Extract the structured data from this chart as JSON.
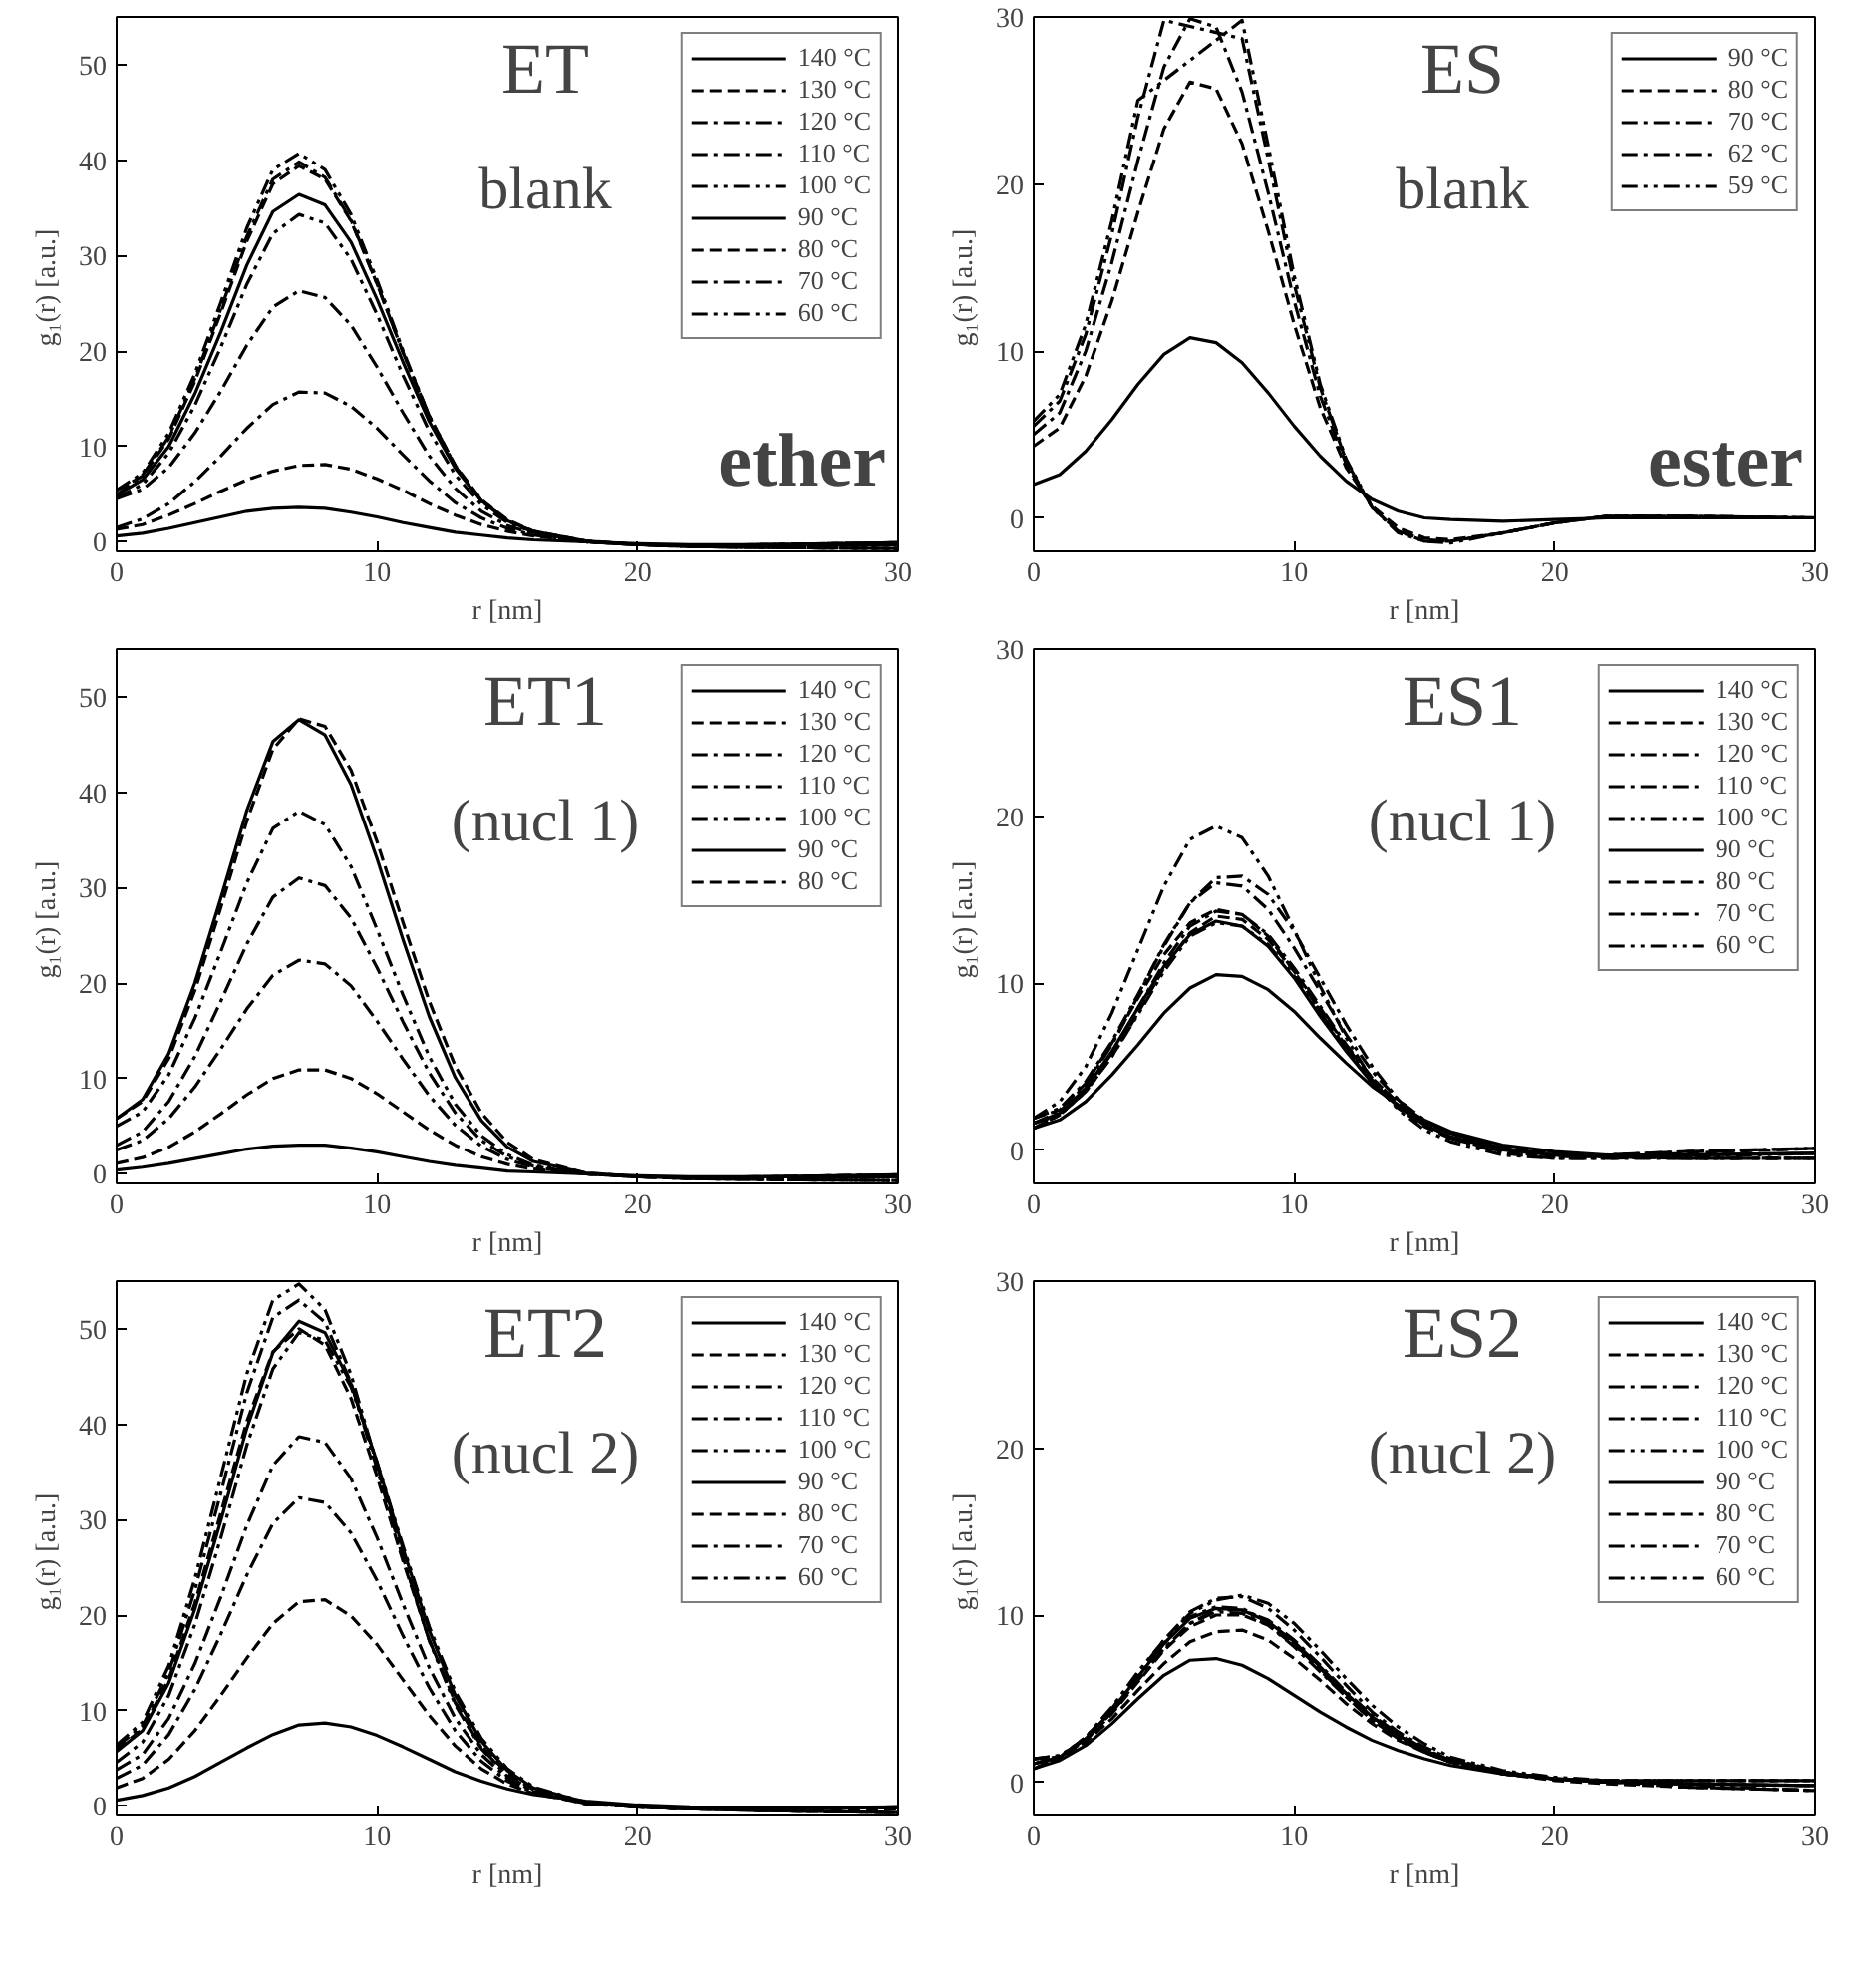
{
  "chart_data": [
    {
      "type": "line",
      "xlabel": "r [nm]",
      "ylabel": "g₁(r)  [a.u.]",
      "annotations": [
        "ET",
        "blank",
        "ether"
      ],
      "xlim": [
        0,
        30
      ],
      "ylim": [
        -1,
        55
      ],
      "xticks": [
        0,
        10,
        20,
        30
      ],
      "yticks": [
        0,
        10,
        20,
        30,
        40,
        50
      ],
      "legend": "top right",
      "grid": false,
      "x": [
        0,
        1,
        2,
        3,
        4,
        5,
        6,
        7,
        8,
        9,
        10,
        11,
        12,
        13,
        14,
        15,
        16,
        18,
        20,
        22,
        25,
        30
      ],
      "series": [
        {
          "name": "140 °C",
          "color": "#000000",
          "line_style": "solid",
          "values": [
            0.6,
            0.9,
            1.4,
            2.0,
            2.6,
            3.2,
            3.5,
            3.6,
            3.5,
            3.1,
            2.6,
            2.0,
            1.5,
            1.0,
            0.7,
            0.4,
            0.2,
            0,
            -0.2,
            -0.3,
            -0.3,
            -0.3
          ]
        },
        {
          "name": "130 °C",
          "color": "#000000",
          "line_style": "dashed",
          "values": [
            1.3,
            1.8,
            2.8,
            4.0,
            5.3,
            6.5,
            7.4,
            8.0,
            8.1,
            7.6,
            6.6,
            5.4,
            4.0,
            2.8,
            1.8,
            1.1,
            0.6,
            0,
            -0.3,
            -0.4,
            -0.3,
            -0.1
          ]
        },
        {
          "name": "120 °C",
          "color": "#000000",
          "line_style": "dashdot",
          "values": [
            1.5,
            2.4,
            4.0,
            6.3,
            9.0,
            11.9,
            14.4,
            15.7,
            15.6,
            14.2,
            11.9,
            9.1,
            6.4,
            4.1,
            2.5,
            1.4,
            0.7,
            0,
            -0.3,
            -0.5,
            -0.6,
            -0.7
          ]
        },
        {
          "name": "110 °C",
          "color": "#000000",
          "line_style": "dashdot",
          "values": [
            4.5,
            5.5,
            7.8,
            11.4,
            15.8,
            20.6,
            24.6,
            26.3,
            25.6,
            22.7,
            18.3,
            13.5,
            9.0,
            5.6,
            3.2,
            1.7,
            0.8,
            0,
            -0.3,
            -0.4,
            -0.3,
            -0.1
          ]
        },
        {
          "name": "100 °C",
          "color": "#000000",
          "line_style": "dashdotdot",
          "values": [
            4.6,
            6.0,
            9.3,
            14.3,
            20.4,
            27.0,
            32.3,
            34.3,
            33.4,
            29.6,
            23.8,
            17.4,
            11.6,
            7.0,
            3.9,
            2.0,
            1.0,
            0,
            -0.3,
            -0.5,
            -0.6,
            -0.7
          ]
        },
        {
          "name": "90 °C",
          "color": "#000000",
          "line_style": "solid",
          "values": [
            4.9,
            6.5,
            10.0,
            15.5,
            22.0,
            29.0,
            34.6,
            36.4,
            35.3,
            31.4,
            25.4,
            18.8,
            12.6,
            7.7,
            4.3,
            2.2,
            1.1,
            0.1,
            -0.3,
            -0.4,
            -0.3,
            -0.1
          ]
        },
        {
          "name": "80 °C",
          "color": "#000000",
          "line_style": "dashed",
          "values": [
            5.4,
            6.9,
            10.8,
            16.8,
            24.0,
            31.5,
            37.5,
            39.4,
            38.0,
            33.6,
            27.0,
            19.8,
            13.2,
            8.0,
            4.4,
            2.3,
            1.1,
            0.1,
            -0.3,
            -0.4,
            -0.3,
            -0.1
          ]
        },
        {
          "name": "70 °C",
          "color": "#000000",
          "line_style": "dashdot",
          "values": [
            4.9,
            7.0,
            11.0,
            17.1,
            24.4,
            32.0,
            38.0,
            39.8,
            38.2,
            33.7,
            27.0,
            19.8,
            13.1,
            7.9,
            4.3,
            2.2,
            1.0,
            0,
            -0.3,
            -0.5,
            -0.6,
            -0.7
          ]
        },
        {
          "name": "60 °C",
          "color": "#000000",
          "line_style": "dashdotdot",
          "values": [
            5.4,
            7.2,
            11.4,
            17.6,
            25.1,
            32.9,
            39.0,
            40.7,
            39.0,
            34.3,
            27.4,
            20.0,
            13.2,
            7.9,
            4.3,
            2.2,
            1.0,
            0,
            -0.3,
            -0.5,
            -0.6,
            -0.7
          ]
        }
      ]
    },
    {
      "type": "line",
      "xlabel": "r [nm]",
      "ylabel": "g₁(r)  [a.u.]",
      "annotations": [
        "ES",
        "blank",
        "ester"
      ],
      "xlim": [
        0,
        30
      ],
      "ylim": [
        -2,
        30
      ],
      "xticks": [
        0,
        10,
        20,
        30
      ],
      "yticks": [
        0,
        10,
        20,
        30
      ],
      "legend": "top right",
      "grid": false,
      "x": [
        0,
        1,
        2,
        3,
        4,
        5,
        6,
        7,
        8,
        9,
        10,
        11,
        12,
        13,
        14,
        15,
        16,
        18,
        20,
        22,
        25,
        30
      ],
      "series": [
        {
          "name": "90 °C",
          "color": "#000000",
          "line_style": "solid",
          "values": [
            2.0,
            2.6,
            4.0,
            5.9,
            8.0,
            9.8,
            10.8,
            10.5,
            9.3,
            7.5,
            5.5,
            3.7,
            2.2,
            1.1,
            0.4,
            0.0,
            -0.1,
            -0.2,
            -0.1,
            0,
            0,
            0
          ]
        },
        {
          "name": "80 °C",
          "color": "#000000",
          "line_style": "dashed",
          "values": [
            4.3,
            5.4,
            8.5,
            13.0,
            18.3,
            23.3,
            26.1,
            25.7,
            22.4,
            17.2,
            11.6,
            6.6,
            3.0,
            0.7,
            -0.6,
            -1.2,
            -1.3,
            -0.9,
            -0.3,
            0.1,
            0.1,
            0
          ]
        },
        {
          "name": "70 °C",
          "color": "#000000",
          "line_style": "dashdot",
          "values": [
            5.0,
            6.3,
            10.0,
            15.3,
            21.4,
            27.0,
            29.9,
            29.4,
            25.5,
            19.5,
            13.0,
            7.3,
            3.2,
            0.6,
            -0.8,
            -1.3,
            -1.4,
            -0.9,
            -0.3,
            0.1,
            0.1,
            0
          ]
        },
        {
          "name": "62 °C",
          "color": "#000000",
          "line_style": "dashdot",
          "x": [
            0,
            1,
            2,
            3,
            4,
            5,
            8,
            9,
            10,
            11,
            12,
            13,
            14,
            15,
            16,
            18,
            20,
            22,
            25,
            30
          ],
          "values": [
            5.5,
            7.0,
            11.0,
            17.0,
            24.0,
            29.8,
            28.7,
            21.5,
            14.0,
            7.8,
            3.4,
            0.6,
            -0.8,
            -1.4,
            -1.4,
            -0.9,
            -0.3,
            0.1,
            0.1,
            0
          ]
        },
        {
          "name": "59 °C",
          "color": "#000000",
          "line_style": "dashdotdot",
          "x": [
            0,
            1,
            2,
            3,
            4,
            8,
            9,
            10,
            11,
            12,
            13,
            14,
            15,
            16,
            18,
            20,
            22,
            25,
            30
          ],
          "values": [
            5.8,
            7.4,
            11.6,
            17.8,
            25.0,
            29.8,
            22.3,
            14.5,
            8.0,
            3.5,
            0.6,
            -0.9,
            -1.4,
            -1.5,
            -0.9,
            -0.3,
            0.1,
            0.1,
            0
          ]
        }
      ]
    },
    {
      "type": "line",
      "xlabel": "r [nm]",
      "ylabel": "g₁(r)  [a.u.]",
      "annotations": [
        "ET1",
        "(nucl 1)"
      ],
      "xlim": [
        0,
        30
      ],
      "ylim": [
        -1,
        55
      ],
      "xticks": [
        0,
        10,
        20,
        30
      ],
      "yticks": [
        0,
        10,
        20,
        30,
        40,
        50
      ],
      "legend": "top right",
      "grid": false,
      "x": [
        0,
        1,
        2,
        3,
        4,
        5,
        6,
        7,
        8,
        9,
        10,
        11,
        12,
        13,
        14,
        15,
        16,
        18,
        20,
        22,
        25,
        30
      ],
      "series": [
        {
          "name": "140 °C",
          "color": "#000000",
          "line_style": "solid",
          "values": [
            0.4,
            0.7,
            1.1,
            1.6,
            2.1,
            2.6,
            2.9,
            3.0,
            3.0,
            2.7,
            2.3,
            1.8,
            1.3,
            0.9,
            0.6,
            0.3,
            0.2,
            0,
            -0.2,
            -0.3,
            -0.3,
            -0.3
          ]
        },
        {
          "name": "130 °C",
          "color": "#000000",
          "line_style": "dashed",
          "values": [
            1.1,
            1.7,
            2.8,
            4.4,
            6.3,
            8.3,
            10.0,
            10.9,
            10.9,
            10.0,
            8.4,
            6.5,
            4.6,
            3.0,
            1.8,
            1.0,
            0.5,
            0,
            -0.3,
            -0.4,
            -0.3,
            -0.1
          ]
        },
        {
          "name": "120 °C",
          "color": "#000000",
          "line_style": "dashdot",
          "values": [
            2.5,
            3.5,
            5.8,
            9.1,
            13.1,
            17.3,
            20.8,
            22.4,
            22.0,
            19.7,
            16.0,
            12.0,
            8.2,
            5.1,
            2.9,
            1.5,
            0.7,
            0,
            -0.3,
            -0.5,
            -0.6,
            -0.7
          ]
        },
        {
          "name": "110 °C",
          "color": "#000000",
          "line_style": "dashdot",
          "values": [
            3.0,
            4.4,
            7.6,
            12.3,
            18.1,
            24.1,
            29.0,
            31.0,
            30.2,
            26.8,
            21.6,
            15.9,
            10.6,
            6.4,
            3.5,
            1.8,
            0.8,
            0,
            -0.3,
            -0.4,
            -0.3,
            -0.1
          ]
        },
        {
          "name": "100 °C",
          "color": "#000000",
          "line_style": "dashdotdot",
          "values": [
            5.0,
            6.5,
            10.4,
            16.3,
            23.3,
            30.5,
            36.2,
            38.0,
            36.6,
            32.2,
            25.6,
            18.7,
            12.3,
            7.3,
            4.0,
            2.0,
            0.9,
            0,
            -0.3,
            -0.5,
            -0.6,
            -0.7
          ]
        },
        {
          "name": "90 °C",
          "color": "#000000",
          "line_style": "solid",
          "values": [
            5.8,
            7.8,
            12.6,
            20.0,
            28.9,
            38.1,
            45.3,
            47.6,
            46.0,
            40.8,
            33.0,
            24.5,
            16.5,
            10.1,
            5.6,
            2.8,
            1.3,
            0.1,
            -0.3,
            -0.4,
            -0.3,
            -0.1
          ]
        },
        {
          "name": "80 °C",
          "color": "#000000",
          "line_style": "dashed",
          "values": [
            5.8,
            7.6,
            12.1,
            19.2,
            27.9,
            37.0,
            44.5,
            47.7,
            46.9,
            42.3,
            34.8,
            26.3,
            18.1,
            11.3,
            6.4,
            3.3,
            1.5,
            0.1,
            -0.3,
            -0.5,
            -0.6,
            -0.7
          ]
        }
      ]
    },
    {
      "type": "line",
      "xlabel": "r [nm]",
      "ylabel": "g₁(r)  [a.u.]",
      "annotations": [
        "ES1",
        "(nucl 1)"
      ],
      "xlim": [
        0,
        30
      ],
      "ylim": [
        -2,
        30
      ],
      "xticks": [
        0,
        10,
        20,
        30
      ],
      "yticks": [
        0,
        10,
        20,
        30
      ],
      "legend": "top right",
      "grid": false,
      "x": [
        0,
        1,
        2,
        3,
        4,
        5,
        6,
        7,
        8,
        9,
        10,
        11,
        12,
        13,
        14,
        15,
        16,
        18,
        20,
        22,
        25,
        30
      ],
      "series": [
        {
          "name": "140 °C",
          "color": "#000000",
          "line_style": "solid",
          "values": [
            1.3,
            1.8,
            2.9,
            4.5,
            6.3,
            8.2,
            9.7,
            10.5,
            10.4,
            9.6,
            8.3,
            6.7,
            5.2,
            3.8,
            2.7,
            1.8,
            1.1,
            0.3,
            -0.1,
            -0.3,
            -0.3,
            -0.2
          ]
        },
        {
          "name": "130 °C",
          "color": "#000000",
          "line_style": "dashed",
          "values": [
            1.3,
            2.1,
            3.5,
            5.6,
            8.2,
            10.9,
            13.0,
            14.0,
            13.8,
            12.6,
            10.7,
            8.5,
            6.2,
            4.3,
            2.8,
            1.7,
            1.0,
            0.2,
            -0.2,
            -0.4,
            -0.5,
            -0.5
          ]
        },
        {
          "name": "120 °C",
          "color": "#000000",
          "line_style": "dashdot",
          "values": [
            1.6,
            2.3,
            3.9,
            6.3,
            9.2,
            12.3,
            14.8,
            16.0,
            15.8,
            14.4,
            12.1,
            9.5,
            6.9,
            4.7,
            3.0,
            1.8,
            1.0,
            0.1,
            -0.3,
            -0.3,
            -0.1,
            0.1
          ]
        },
        {
          "name": "110 °C",
          "color": "#000000",
          "line_style": "dashdot",
          "values": [
            1.3,
            2.1,
            3.6,
            5.8,
            8.5,
            11.2,
            13.4,
            14.3,
            14.1,
            12.9,
            10.9,
            8.6,
            6.3,
            4.3,
            2.8,
            1.7,
            1.0,
            0.1,
            -0.3,
            -0.3,
            -0.1,
            0.1
          ]
        },
        {
          "name": "100 °C",
          "color": "#000000",
          "line_style": "dashdotdot",
          "values": [
            1.6,
            2.1,
            3.5,
            5.6,
            8.1,
            10.7,
            12.8,
            13.6,
            13.4,
            12.3,
            10.4,
            8.2,
            6.1,
            4.2,
            2.7,
            1.7,
            1.0,
            0.1,
            -0.3,
            -0.4,
            -0.5,
            -0.5
          ]
        },
        {
          "name": "90 °C",
          "color": "#000000",
          "line_style": "solid",
          "values": [
            1.6,
            2.2,
            3.7,
            5.9,
            8.5,
            11.0,
            12.9,
            13.7,
            13.4,
            12.2,
            10.3,
            8.0,
            5.9,
            4.0,
            2.6,
            1.5,
            0.8,
            0,
            -0.3,
            -0.4,
            -0.3,
            -0.2
          ]
        },
        {
          "name": "80 °C",
          "color": "#000000",
          "line_style": "dashed",
          "values": [
            1.9,
            2.4,
            4.0,
            6.4,
            9.1,
            11.7,
            13.6,
            14.4,
            14.1,
            12.8,
            10.7,
            8.3,
            6.0,
            4.0,
            2.5,
            1.4,
            0.7,
            -0.1,
            -0.4,
            -0.4,
            -0.2,
            0.1
          ]
        },
        {
          "name": "70 °C",
          "color": "#000000",
          "line_style": "dashdot",
          "values": [
            1.9,
            2.5,
            4.1,
            6.5,
            9.3,
            12.2,
            14.8,
            16.3,
            16.4,
            15.3,
            13.1,
            10.3,
            7.5,
            5.0,
            3.0,
            1.6,
            0.7,
            -0.2,
            -0.5,
            -0.5,
            -0.5,
            -0.5
          ]
        },
        {
          "name": "60 °C",
          "color": "#000000",
          "line_style": "dashdotdot",
          "values": [
            1.9,
            2.9,
            5.0,
            8.2,
            12.0,
            15.8,
            18.6,
            19.4,
            18.7,
            16.4,
            13.2,
            9.8,
            6.7,
            4.2,
            2.4,
            1.2,
            0.5,
            -0.3,
            -0.5,
            -0.5,
            -0.4,
            -0.2
          ]
        }
      ]
    },
    {
      "type": "line",
      "xlabel": "r [nm]",
      "ylabel": "g₁(r)  [a.u.]",
      "annotations": [
        "ET2",
        "(nucl 2)"
      ],
      "xlim": [
        0,
        30
      ],
      "ylim": [
        -1,
        55
      ],
      "xticks": [
        0,
        10,
        20,
        30
      ],
      "yticks": [
        0,
        10,
        20,
        30,
        40,
        50
      ],
      "legend": "top right",
      "grid": false,
      "x": [
        0,
        1,
        2,
        3,
        4,
        5,
        6,
        7,
        8,
        9,
        10,
        11,
        12,
        13,
        14,
        15,
        16,
        18,
        20,
        22,
        25,
        30
      ],
      "series": [
        {
          "name": "140 °C",
          "color": "#000000",
          "line_style": "solid",
          "values": [
            0.6,
            1.1,
            1.9,
            3.1,
            4.6,
            6.1,
            7.5,
            8.5,
            8.7,
            8.3,
            7.4,
            6.2,
            4.9,
            3.6,
            2.6,
            1.8,
            1.2,
            0.5,
            0.1,
            -0.1,
            -0.2,
            -0.2
          ]
        },
        {
          "name": "130 °C",
          "color": "#000000",
          "line_style": "dashed",
          "values": [
            1.9,
            2.9,
            4.9,
            7.9,
            11.6,
            15.5,
            19.1,
            21.4,
            21.6,
            19.9,
            16.9,
            13.2,
            9.5,
            6.3,
            3.9,
            2.3,
            1.3,
            0.3,
            -0.1,
            -0.3,
            -0.3,
            -0.3
          ]
        },
        {
          "name": "120 °C",
          "color": "#000000",
          "line_style": "dashdot",
          "values": [
            2.9,
            4.3,
            7.5,
            12.2,
            18.0,
            24.2,
            29.6,
            32.3,
            31.8,
            28.6,
            23.6,
            17.8,
            12.4,
            7.9,
            4.7,
            2.6,
            1.4,
            0.3,
            -0.1,
            -0.3,
            -0.5,
            -0.7
          ]
        },
        {
          "name": "110 °C",
          "color": "#000000",
          "line_style": "dashdot",
          "values": [
            3.8,
            5.4,
            9.2,
            14.9,
            21.9,
            29.4,
            35.7,
            38.7,
            38.1,
            34.3,
            28.1,
            21.1,
            14.5,
            9.2,
            5.4,
            2.9,
            1.5,
            0.3,
            -0.1,
            -0.3,
            -0.2,
            -0.1
          ]
        },
        {
          "name": "100 °C",
          "color": "#000000",
          "line_style": "dashdotdot",
          "values": [
            4.6,
            6.7,
            11.6,
            19.0,
            28.1,
            37.8,
            45.8,
            49.6,
            48.8,
            43.9,
            36.0,
            27.2,
            18.8,
            12.0,
            7.1,
            3.9,
            2.0,
            0.4,
            -0.1,
            -0.3,
            -0.5,
            -0.7
          ]
        },
        {
          "name": "90 °C",
          "color": "#000000",
          "line_style": "solid",
          "values": [
            5.7,
            7.9,
            12.9,
            20.6,
            29.9,
            39.6,
            47.5,
            50.8,
            49.6,
            44.2,
            36.0,
            26.9,
            18.4,
            11.6,
            6.8,
            3.7,
            1.9,
            0.4,
            -0.1,
            -0.3,
            -0.2,
            -0.1
          ]
        },
        {
          "name": "80 °C",
          "color": "#000000",
          "line_style": "dashed",
          "values": [
            5.9,
            8.1,
            13.3,
            21.2,
            30.7,
            40.3,
            47.6,
            50.0,
            48.3,
            42.7,
            34.5,
            25.6,
            17.4,
            10.9,
            6.3,
            3.4,
            1.7,
            0.3,
            -0.1,
            -0.3,
            -0.5,
            -0.7
          ]
        },
        {
          "name": "70 °C",
          "color": "#000000",
          "line_style": "dashdot",
          "values": [
            6.2,
            8.4,
            14.0,
            22.6,
            32.8,
            43.3,
            51.2,
            53.0,
            50.7,
            44.3,
            35.3,
            25.9,
            17.4,
            10.8,
            6.1,
            3.2,
            1.6,
            0.3,
            -0.1,
            -0.3,
            -0.2,
            -0.1
          ]
        },
        {
          "name": "60 °C",
          "color": "#000000",
          "line_style": "dashdotdot",
          "values": [
            6.4,
            8.8,
            14.7,
            23.8,
            34.5,
            45.3,
            53.0,
            54.7,
            52.0,
            45.2,
            35.7,
            26.0,
            17.3,
            10.6,
            6.0,
            3.1,
            1.5,
            0.2,
            -0.1,
            -0.3,
            -0.5,
            -0.7
          ]
        }
      ]
    },
    {
      "type": "line",
      "xlabel": "r [nm]",
      "ylabel": "g₁(r)  [a.u.]",
      "annotations": [
        "ES2",
        "(nucl 2)"
      ],
      "xlim": [
        0,
        30
      ],
      "ylim": [
        -2,
        30
      ],
      "xticks": [
        0,
        10,
        20,
        30
      ],
      "yticks": [
        0,
        10,
        20,
        30
      ],
      "legend": "top right",
      "grid": false,
      "x": [
        0,
        1,
        2,
        3,
        4,
        5,
        6,
        7,
        8,
        9,
        10,
        11,
        12,
        13,
        14,
        15,
        16,
        18,
        20,
        22,
        25,
        30
      ],
      "series": [
        {
          "name": "140 °C",
          "color": "#000000",
          "line_style": "solid",
          "values": [
            0.8,
            1.3,
            2.2,
            3.5,
            5.0,
            6.4,
            7.3,
            7.4,
            7.0,
            6.2,
            5.2,
            4.2,
            3.3,
            2.5,
            1.9,
            1.4,
            1.0,
            0.5,
            0.2,
            0,
            -0.1,
            -0.2
          ]
        },
        {
          "name": "130 °C",
          "color": "#000000",
          "line_style": "dashed",
          "values": [
            0.8,
            1.4,
            2.4,
            3.8,
            5.5,
            7.1,
            8.4,
            9.0,
            9.1,
            8.5,
            7.4,
            6.1,
            4.7,
            3.5,
            2.5,
            1.8,
            1.2,
            0.5,
            0.1,
            -0.1,
            -0.3,
            -0.5
          ]
        },
        {
          "name": "120 °C",
          "color": "#000000",
          "line_style": "dashdot",
          "values": [
            1.1,
            1.5,
            2.6,
            4.2,
            6.1,
            8.0,
            9.5,
            10.3,
            10.3,
            9.7,
            8.5,
            7.0,
            5.4,
            4.0,
            2.9,
            2.0,
            1.3,
            0.6,
            0.2,
            0.1,
            0.1,
            0.1
          ]
        },
        {
          "name": "110 °C",
          "color": "#000000",
          "line_style": "dashdot",
          "values": [
            0.8,
            1.5,
            2.7,
            4.4,
            6.5,
            8.5,
            10.2,
            11.0,
            11.1,
            10.4,
            9.1,
            7.5,
            5.8,
            4.2,
            3.0,
            2.1,
            1.4,
            0.6,
            0.2,
            0.1,
            0.1,
            0.1
          ]
        },
        {
          "name": "100 °C",
          "color": "#000000",
          "line_style": "dashdotdot",
          "values": [
            1.1,
            1.5,
            2.7,
            4.5,
            6.6,
            8.5,
            10.1,
            10.9,
            11.2,
            10.7,
            9.5,
            7.9,
            6.2,
            4.6,
            3.3,
            2.3,
            1.5,
            0.7,
            0.3,
            0.1,
            -0.2,
            -0.5
          ]
        },
        {
          "name": "90 °C",
          "color": "#000000",
          "line_style": "solid",
          "values": [
            1.1,
            1.5,
            2.6,
            4.3,
            6.3,
            8.3,
            9.8,
            10.4,
            10.3,
            9.6,
            8.4,
            6.9,
            5.3,
            3.9,
            2.8,
            1.9,
            1.3,
            0.6,
            0.2,
            0,
            -0.1,
            -0.2
          ]
        },
        {
          "name": "80 °C",
          "color": "#000000",
          "line_style": "dashed",
          "values": [
            1.4,
            1.5,
            2.5,
            4.1,
            6.0,
            7.9,
            9.3,
            10.0,
            10.0,
            9.4,
            8.2,
            6.8,
            5.3,
            3.9,
            2.8,
            1.9,
            1.3,
            0.6,
            0.2,
            0.1,
            0.1,
            0.1
          ]
        },
        {
          "name": "70 °C",
          "color": "#000000",
          "line_style": "dashdot",
          "values": [
            1.4,
            1.6,
            2.5,
            4.2,
            6.1,
            8.0,
            9.5,
            10.2,
            10.1,
            9.4,
            8.1,
            6.6,
            5.1,
            3.7,
            2.6,
            1.8,
            1.2,
            0.5,
            0.2,
            0,
            -0.3,
            -0.5
          ]
        },
        {
          "name": "60 °C",
          "color": "#000000",
          "line_style": "dashdotdot",
          "values": [
            1.4,
            1.6,
            2.6,
            4.3,
            6.3,
            8.3,
            9.9,
            10.5,
            10.4,
            9.6,
            8.3,
            6.7,
            5.1,
            3.7,
            2.6,
            1.8,
            1.2,
            0.5,
            0.2,
            0,
            -0.1,
            -0.2
          ]
        }
      ]
    }
  ]
}
